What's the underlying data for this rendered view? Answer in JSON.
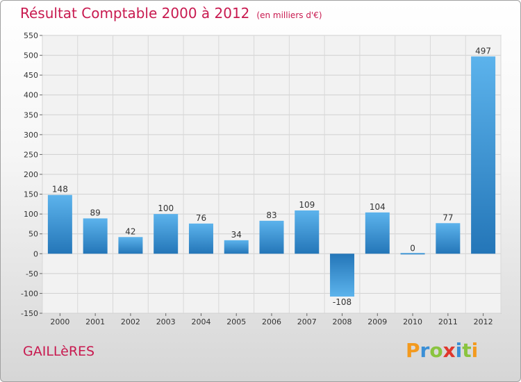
{
  "title": "Résultat Comptable 2000 à 2012",
  "unit": "(en milliers d'€)",
  "footer_label": "GAILLèRES",
  "logo": {
    "text": "Proxiti",
    "letters": [
      {
        "ch": "P",
        "color": "#f39a1e"
      },
      {
        "ch": "r",
        "color": "#3a8fd6"
      },
      {
        "ch": "o",
        "color": "#8ac43f"
      },
      {
        "ch": "x",
        "color": "#e0372c"
      },
      {
        "ch": "i",
        "color": "#3a8fd6"
      },
      {
        "ch": "t",
        "color": "#8ac43f"
      },
      {
        "ch": "i",
        "color": "#f39a1e"
      }
    ]
  },
  "chart_data": {
    "type": "bar",
    "title": "Résultat Comptable 2000 à 2012",
    "subtitle": "(en milliers d'€)",
    "categories": [
      "2000",
      "2001",
      "2002",
      "2003",
      "2004",
      "2005",
      "2006",
      "2007",
      "2008",
      "2009",
      "2010",
      "2011",
      "2012"
    ],
    "values": [
      148,
      89,
      42,
      100,
      76,
      34,
      83,
      109,
      -108,
      104,
      0,
      77,
      497
    ],
    "ylim": [
      -150,
      550
    ],
    "yticks": [
      -150,
      -100,
      -50,
      0,
      50,
      100,
      150,
      200,
      250,
      300,
      350,
      400,
      450,
      500,
      550
    ],
    "grid": true,
    "bar_color": "#3a8fd6"
  }
}
